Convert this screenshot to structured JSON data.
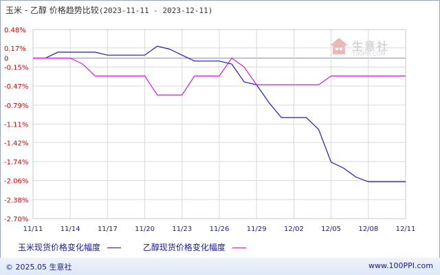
{
  "header": {
    "title": "玉米 - 乙醇 价格趋势比较",
    "range": "(2023-11-11 - 2023-12-11)"
  },
  "watermark": {
    "name": "生意社",
    "url": "100PPI.COM"
  },
  "footer": {
    "copyright": "© 2025.05 生意社",
    "url": "www.100PPI.com"
  },
  "colors": {
    "series1": "#1a1aaa",
    "series2": "#d61ad6",
    "axis_text": "#cc0000",
    "grid": "#d9d9d9"
  },
  "chart_data": {
    "type": "line",
    "title": "玉米 - 乙醇 价格趋势比较",
    "y_ticks": [
      "0.48%",
      "0.17%",
      "0",
      "-0.15%",
      "-0.47%",
      "-0.79%",
      "-1.11%",
      "-1.42%",
      "-1.74%",
      "-2.06%",
      "-2.38%",
      "-2.70%"
    ],
    "y_tick_values": [
      0.48,
      0.17,
      0,
      -0.15,
      -0.47,
      -0.79,
      -1.11,
      -1.42,
      -1.74,
      -2.06,
      -2.38,
      -2.7
    ],
    "ylim": [
      -2.7,
      0.48
    ],
    "x_ticks": [
      "11/11",
      "11/14",
      "11/17",
      "11/20",
      "11/23",
      "11/26",
      "11/29",
      "12/02",
      "12/05",
      "12/08",
      "12/11"
    ],
    "x_tick_days": [
      0,
      3,
      6,
      9,
      12,
      15,
      18,
      21,
      24,
      27,
      30
    ],
    "grid": true,
    "legend_position": "bottom",
    "series": [
      {
        "name": "玉米现货价格变化幅度",
        "points": [
          [
            0,
            0
          ],
          [
            1,
            0
          ],
          [
            2,
            0.1
          ],
          [
            3,
            0.1
          ],
          [
            4,
            0.1
          ],
          [
            5,
            0.1
          ],
          [
            6,
            0.05
          ],
          [
            7,
            0.05
          ],
          [
            8,
            0.05
          ],
          [
            9,
            0.05
          ],
          [
            10,
            0.2
          ],
          [
            11,
            0.15
          ],
          [
            12,
            0.05
          ],
          [
            13,
            -0.05
          ],
          [
            14,
            -0.05
          ],
          [
            15,
            -0.05
          ],
          [
            16,
            -0.1
          ],
          [
            17,
            -0.4
          ],
          [
            18,
            -0.45
          ],
          [
            19,
            -0.75
          ],
          [
            20,
            -1.0
          ],
          [
            21,
            -1.0
          ],
          [
            22,
            -1.0
          ],
          [
            23,
            -1.2
          ],
          [
            24,
            -1.75
          ],
          [
            25,
            -1.85
          ],
          [
            26,
            -2.0
          ],
          [
            27,
            -2.08
          ],
          [
            28,
            -2.08
          ],
          [
            29,
            -2.08
          ],
          [
            30,
            -2.08
          ]
        ]
      },
      {
        "name": "乙醇现货价格变化幅度",
        "points": [
          [
            0,
            0
          ],
          [
            1,
            0
          ],
          [
            2,
            0
          ],
          [
            3,
            0
          ],
          [
            4,
            -0.1
          ],
          [
            5,
            -0.3
          ],
          [
            6,
            -0.3
          ],
          [
            7,
            -0.3
          ],
          [
            8,
            -0.3
          ],
          [
            9,
            -0.3
          ],
          [
            10,
            -0.62
          ],
          [
            11,
            -0.62
          ],
          [
            12,
            -0.62
          ],
          [
            13,
            -0.3
          ],
          [
            14,
            -0.3
          ],
          [
            15,
            -0.3
          ],
          [
            16,
            0
          ],
          [
            17,
            -0.15
          ],
          [
            18,
            -0.45
          ],
          [
            19,
            -0.45
          ],
          [
            20,
            -0.45
          ],
          [
            21,
            -0.45
          ],
          [
            22,
            -0.45
          ],
          [
            23,
            -0.45
          ],
          [
            24,
            -0.3
          ],
          [
            25,
            -0.3
          ],
          [
            26,
            -0.3
          ],
          [
            27,
            -0.3
          ],
          [
            28,
            -0.3
          ],
          [
            29,
            -0.3
          ],
          [
            30,
            -0.3
          ]
        ]
      }
    ]
  }
}
